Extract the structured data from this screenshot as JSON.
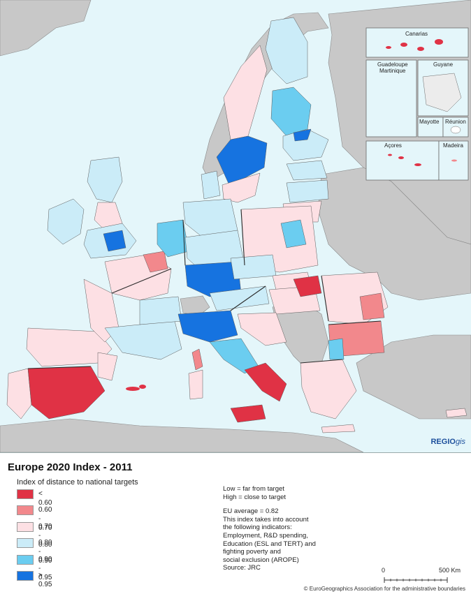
{
  "map": {
    "colors": {
      "sea": "#e4f6fa",
      "nonEU": "#c8c8c8",
      "nodata": "#d4d4d4",
      "border": "#2b2b2b",
      "lt060": "#e03245",
      "c060_070": "#f2888c",
      "c070_080": "#fde0e4",
      "c080_090": "#cbecf8",
      "c090_095": "#6bcdf0",
      "gt095": "#1673e0"
    },
    "insets": [
      "Canarias",
      "Guadeloupe Martinique",
      "Guyane",
      "Mayotte",
      "Réunion",
      "Açores",
      "Madeira"
    ],
    "logo_main": "REGIO",
    "logo_sub": "gis"
  },
  "title": "Europe 2020 Index - 2011",
  "legend": {
    "heading": "Index of distance to national targets",
    "items": [
      {
        "label": "< 0.60",
        "color": "#e03245"
      },
      {
        "label": "0.60 - 0.70",
        "color": "#f2888c"
      },
      {
        "label": "0.70 - 0.80",
        "color": "#fde0e4"
      },
      {
        "label": "0.80 - 0.90",
        "color": "#cbecf8"
      },
      {
        "label": "0.90 - 0.95",
        "color": "#6bcdf0"
      },
      {
        "label": "> 0.95",
        "color": "#1673e0"
      }
    ]
  },
  "notes": {
    "low": "Low = far from target",
    "high": "High = close to target",
    "eu_avg": "EU average = 0.82",
    "desc1": "This index takes into account",
    "desc2": "the following indicators:",
    "desc3": "Employment, R&D spending,",
    "desc4": "Education (ESL and TERT) and",
    "desc5": "fighting poverty and",
    "desc6": "social exclusion (AROPE)",
    "source": "Source: JRC"
  },
  "scale": {
    "start": "0",
    "end": "500",
    "unit": "Km"
  },
  "copyright": "© EuroGeographics Association for the administrative boundaries"
}
